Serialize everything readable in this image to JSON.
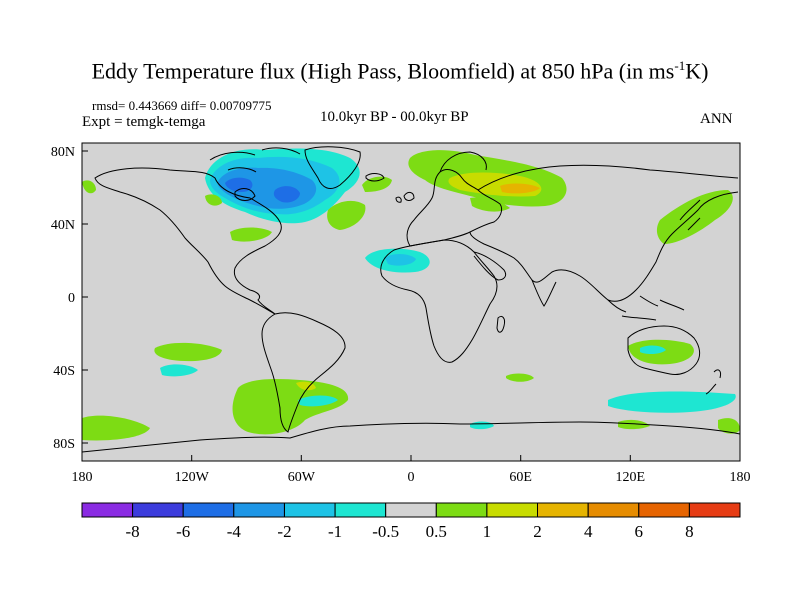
{
  "title_main": "Eddy Temperature flux (High Pass, Bloomfield) at 850 hPa (in ms",
  "title_sup": "-1",
  "title_end": "K)",
  "stats": "rmsd= 0.443669 diff= 0.00709775",
  "experiment": "Expt = temgk-temga",
  "period": "10.0kyr BP - 00.0kyr BP",
  "season": "ANN",
  "lat_labels": [
    "80N",
    "40N",
    "0",
    "40S",
    "80S"
  ],
  "lon_labels": [
    "180",
    "120W",
    "60W",
    "0",
    "60E",
    "120E",
    "180"
  ],
  "colorbar": {
    "colors": [
      "#8a2be2",
      "#3c3cdc",
      "#1e6ee6",
      "#1e96e6",
      "#1ec3e6",
      "#1ee6d2",
      "#d3d3d3",
      "#7ddc14",
      "#c8dc00",
      "#e6b400",
      "#e68c00",
      "#e66400",
      "#e63c14"
    ],
    "labels": [
      "-8",
      "-6",
      "-4",
      "-2",
      "-1",
      "-0.5",
      "0.5",
      "1",
      "2",
      "4",
      "6",
      "8"
    ]
  },
  "map": {
    "background_color": "#d3d3d3",
    "lat_range": [
      -90,
      90
    ],
    "lon_range": [
      -180,
      180
    ]
  }
}
